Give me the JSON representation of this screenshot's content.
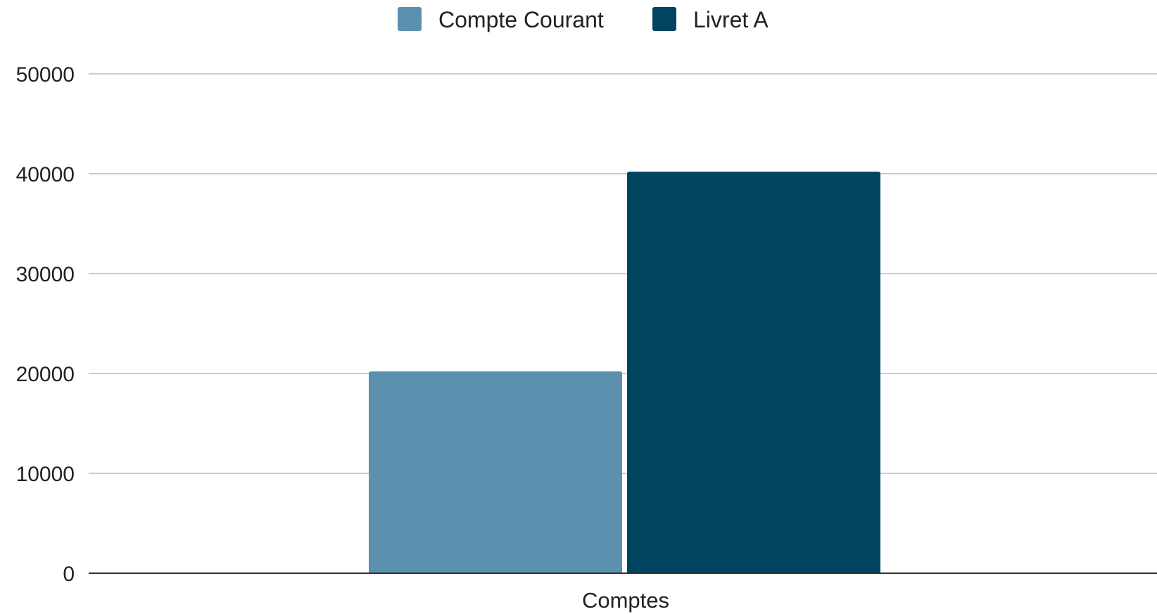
{
  "chart_data": {
    "type": "bar",
    "title": "",
    "xlabel": "",
    "ylabel": "",
    "categories": [
      "Comptes"
    ],
    "series": [
      {
        "name": "Compte Courant",
        "values": [
          20200
        ],
        "color": "#5b91ae"
      },
      {
        "name": "Livret A",
        "values": [
          40200
        ],
        "color": "#01445f"
      }
    ],
    "ylim": [
      0,
      50000
    ],
    "yticks": [
      0,
      10000,
      20000,
      30000,
      40000,
      50000
    ],
    "ytick_labels": [
      "0",
      "10000",
      "20000",
      "30000",
      "40000",
      "50000"
    ],
    "grid": true,
    "legend_position": "top-center",
    "colors": {
      "grid": "#cccccc",
      "baseline": "#333333",
      "text": "#222222"
    }
  }
}
